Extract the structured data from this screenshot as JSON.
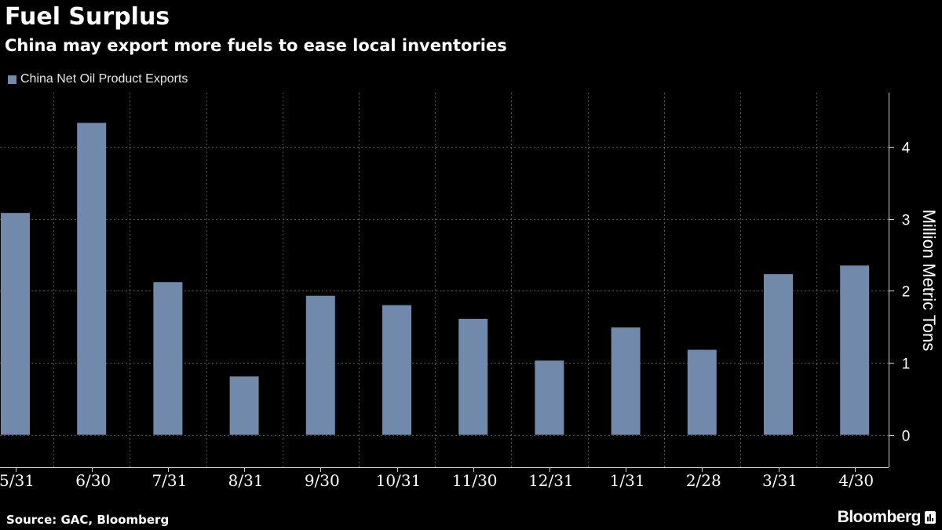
{
  "header": {
    "title": "Fuel Surplus",
    "subtitle": "China may export more fuels to ease local inventories"
  },
  "legend": {
    "label": "China Net Oil Product Exports"
  },
  "footer": {
    "source": "Source: GAC, Bloomberg",
    "brand": "Bloomberg"
  },
  "colors": {
    "bar": "#7189ab",
    "grid": "#555555",
    "axis": "#cccccc",
    "background": "#000000"
  },
  "chart_data": {
    "type": "bar",
    "categories": [
      "5/31",
      "6/30",
      "7/31",
      "8/31",
      "9/30",
      "10/31",
      "11/30",
      "12/31",
      "1/31",
      "2/28",
      "3/31",
      "4/30"
    ],
    "series": [
      {
        "name": "China Net Oil Product Exports",
        "values": [
          3.08,
          4.33,
          2.12,
          0.81,
          1.93,
          1.8,
          1.61,
          1.03,
          1.49,
          1.18,
          2.23,
          2.35
        ]
      }
    ],
    "ylabel": "Million Metric Tons",
    "yticks": [
      0,
      1,
      2,
      3,
      4
    ],
    "ylim": [
      -0.45,
      4.75
    ],
    "grid": true,
    "legend_position": "top-left",
    "y_axis_side": "right"
  }
}
